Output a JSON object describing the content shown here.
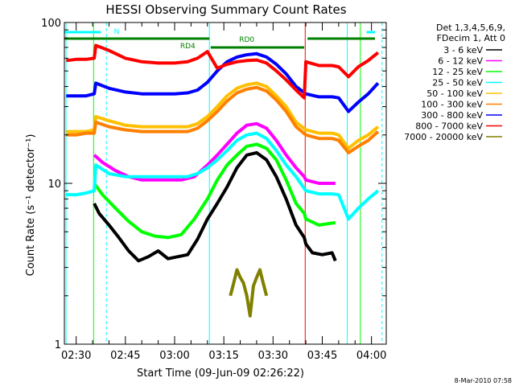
{
  "chart_data": {
    "type": "line",
    "title": "HESSI Observing Summary Count Rates",
    "xlabel": "Start Time (09-Jun-09 02:26:22)",
    "ylabel": "Count Rate (s⁻¹ detector⁻¹)",
    "y_scale": "log",
    "ylim": [
      1,
      100
    ],
    "xlim_minutes": [
      26.4,
      124.5
    ],
    "x_ticks": [
      {
        "label": "02:30",
        "value": 30
      },
      {
        "label": "02:45",
        "value": 45
      },
      {
        "label": "03:00",
        "value": 60
      },
      {
        "label": "03:15",
        "value": 75
      },
      {
        "label": "03:30",
        "value": 90
      },
      {
        "label": "03:45",
        "value": 105
      },
      {
        "label": "04:00",
        "value": 120
      }
    ],
    "y_ticks": [
      {
        "label": "1",
        "value": 1
      },
      {
        "label": "10",
        "value": 10
      },
      {
        "label": "100",
        "value": 100
      }
    ],
    "legend": {
      "header": [
        "Det 1,3,4,5,6,9,",
        "FDecim 1, Att 0"
      ],
      "placement": "right"
    },
    "series": [
      {
        "name": "3 - 6 keV",
        "color": "#000000",
        "points": [
          [
            35.5,
            7.5
          ],
          [
            37,
            6.5
          ],
          [
            40,
            5.5
          ],
          [
            43,
            4.6
          ],
          [
            46,
            3.8
          ],
          [
            49,
            3.3
          ],
          [
            52,
            3.5
          ],
          [
            55,
            3.8
          ],
          [
            58,
            3.4
          ],
          [
            61,
            3.5
          ],
          [
            64,
            3.6
          ],
          [
            67,
            4.5
          ],
          [
            70,
            6.0
          ],
          [
            73,
            7.5
          ],
          [
            76,
            9.5
          ],
          [
            79,
            12.5
          ],
          [
            82,
            15.0
          ],
          [
            85,
            15.5
          ],
          [
            88,
            14.0
          ],
          [
            91,
            11.0
          ],
          [
            94,
            8.0
          ],
          [
            97,
            5.5
          ],
          [
            99.5,
            4.6
          ],
          [
            100,
            4.2
          ],
          [
            102,
            3.7
          ],
          [
            105,
            3.6
          ],
          [
            108,
            3.7
          ],
          [
            109,
            3.3
          ]
        ]
      },
      {
        "name": "6 - 12 keV",
        "color": "#ff00ff",
        "points": [
          [
            35.5,
            15.0
          ],
          [
            38,
            13.5
          ],
          [
            42,
            12.0
          ],
          [
            46,
            11.0
          ],
          [
            50,
            10.5
          ],
          [
            54,
            10.5
          ],
          [
            58,
            10.5
          ],
          [
            62,
            10.5
          ],
          [
            66,
            11.0
          ],
          [
            70,
            13.0
          ],
          [
            73,
            15.0
          ],
          [
            76,
            17.5
          ],
          [
            79,
            20.5
          ],
          [
            82,
            23.0
          ],
          [
            85,
            23.5
          ],
          [
            88,
            22.0
          ],
          [
            91,
            18.5
          ],
          [
            94,
            15.0
          ],
          [
            97,
            12.5
          ],
          [
            99.5,
            11.0
          ],
          [
            100,
            10.5
          ],
          [
            104,
            10.0
          ],
          [
            109,
            10.0
          ]
        ]
      },
      {
        "name": "12 - 25 keV",
        "color": "#00ff00",
        "points": [
          [
            35.5,
            10.0
          ],
          [
            38,
            8.5
          ],
          [
            42,
            7.0
          ],
          [
            46,
            5.8
          ],
          [
            50,
            5.0
          ],
          [
            54,
            4.7
          ],
          [
            58,
            4.6
          ],
          [
            62,
            4.8
          ],
          [
            66,
            6.0
          ],
          [
            70,
            8.0
          ],
          [
            73,
            10.5
          ],
          [
            76,
            13.0
          ],
          [
            79,
            15.0
          ],
          [
            82,
            17.0
          ],
          [
            85,
            17.5
          ],
          [
            88,
            16.5
          ],
          [
            91,
            14.0
          ],
          [
            94,
            10.5
          ],
          [
            97,
            7.5
          ],
          [
            99.5,
            6.5
          ],
          [
            100,
            6.0
          ],
          [
            104,
            5.5
          ],
          [
            109,
            5.7
          ]
        ]
      },
      {
        "name": "25 - 50 keV",
        "color": "#00ffff",
        "points": [
          [
            27,
            8.5
          ],
          [
            30,
            8.5
          ],
          [
            33,
            8.7
          ],
          [
            35.5,
            9.0
          ],
          [
            36,
            13.0
          ],
          [
            40,
            11.5
          ],
          [
            45,
            11.0
          ],
          [
            50,
            11.0
          ],
          [
            55,
            11.0
          ],
          [
            60,
            11.0
          ],
          [
            64,
            11.0
          ],
          [
            67,
            11.5
          ],
          [
            70,
            12.5
          ],
          [
            73,
            14.0
          ],
          [
            76,
            16.0
          ],
          [
            79,
            18.5
          ],
          [
            82,
            20.0
          ],
          [
            85,
            20.5
          ],
          [
            88,
            19.0
          ],
          [
            91,
            16.0
          ],
          [
            94,
            13.0
          ],
          [
            97,
            11.0
          ],
          [
            100,
            9.0
          ],
          [
            104,
            8.6
          ],
          [
            108,
            8.6
          ],
          [
            110,
            8.5
          ],
          [
            113,
            6.0
          ],
          [
            116,
            7.0
          ],
          [
            119,
            8.0
          ],
          [
            122,
            9.0
          ]
        ]
      },
      {
        "name": "50 - 100 keV",
        "color": "#ffc000",
        "points": [
          [
            27,
            21.0
          ],
          [
            30,
            21.0
          ],
          [
            33,
            21.0
          ],
          [
            35.5,
            21.5
          ],
          [
            36,
            26.0
          ],
          [
            40,
            24.5
          ],
          [
            45,
            23.0
          ],
          [
            50,
            22.5
          ],
          [
            55,
            22.5
          ],
          [
            60,
            22.5
          ],
          [
            64,
            22.5
          ],
          [
            67,
            23.5
          ],
          [
            70,
            26.0
          ],
          [
            73,
            30.0
          ],
          [
            76,
            35.0
          ],
          [
            79,
            39.0
          ],
          [
            82,
            41.0
          ],
          [
            85,
            42.0
          ],
          [
            88,
            40.0
          ],
          [
            91,
            35.0
          ],
          [
            94,
            30.0
          ],
          [
            97,
            24.0
          ],
          [
            100,
            21.5
          ],
          [
            104,
            20.5
          ],
          [
            108,
            20.5
          ],
          [
            110,
            20.0
          ],
          [
            113,
            16.5
          ],
          [
            116,
            18.5
          ],
          [
            119,
            20.0
          ],
          [
            122,
            22.5
          ]
        ]
      },
      {
        "name": "100 - 300 keV",
        "color": "#ff8000",
        "points": [
          [
            27,
            20.0
          ],
          [
            30,
            20.0
          ],
          [
            33,
            20.5
          ],
          [
            35.5,
            20.5
          ],
          [
            36,
            24.0
          ],
          [
            40,
            22.5
          ],
          [
            45,
            21.5
          ],
          [
            50,
            21.0
          ],
          [
            55,
            21.0
          ],
          [
            60,
            21.0
          ],
          [
            64,
            21.0
          ],
          [
            67,
            22.0
          ],
          [
            70,
            24.5
          ],
          [
            73,
            28.0
          ],
          [
            76,
            32.5
          ],
          [
            79,
            36.5
          ],
          [
            82,
            38.5
          ],
          [
            85,
            39.5
          ],
          [
            88,
            37.5
          ],
          [
            91,
            33.0
          ],
          [
            94,
            28.0
          ],
          [
            97,
            22.5
          ],
          [
            100,
            20.0
          ],
          [
            104,
            19.0
          ],
          [
            108,
            19.0
          ],
          [
            110,
            18.5
          ],
          [
            113,
            15.5
          ],
          [
            116,
            17.0
          ],
          [
            119,
            18.5
          ],
          [
            122,
            21.0
          ]
        ]
      },
      {
        "name": "300 - 800 keV",
        "color": "#0000ff",
        "points": [
          [
            27,
            35.0
          ],
          [
            30,
            35.0
          ],
          [
            33,
            35.0
          ],
          [
            35.5,
            36.0
          ],
          [
            36,
            42.0
          ],
          [
            40,
            39.0
          ],
          [
            45,
            37.0
          ],
          [
            50,
            36.0
          ],
          [
            55,
            36.0
          ],
          [
            60,
            36.0
          ],
          [
            64,
            36.5
          ],
          [
            67,
            38.0
          ],
          [
            70,
            42.5
          ],
          [
            73,
            50.0
          ],
          [
            76,
            57.0
          ],
          [
            79,
            61.0
          ],
          [
            82,
            63.0
          ],
          [
            85,
            64.0
          ],
          [
            88,
            61.0
          ],
          [
            91,
            55.0
          ],
          [
            94,
            48.0
          ],
          [
            97,
            40.0
          ],
          [
            100,
            36.0
          ],
          [
            104,
            34.5
          ],
          [
            108,
            34.5
          ],
          [
            110,
            34.0
          ],
          [
            113,
            28.0
          ],
          [
            116,
            32.0
          ],
          [
            119,
            36.0
          ],
          [
            122,
            42.0
          ]
        ]
      },
      {
        "name": "800 - 7000 keV",
        "color": "#ff0000",
        "points": [
          [
            27,
            58.0
          ],
          [
            30,
            59.0
          ],
          [
            33,
            59.0
          ],
          [
            35.5,
            60.0
          ],
          [
            36,
            72.0
          ],
          [
            40,
            67.0
          ],
          [
            45,
            60.0
          ],
          [
            50,
            57.0
          ],
          [
            55,
            56.0
          ],
          [
            60,
            56.0
          ],
          [
            64,
            57.0
          ],
          [
            67,
            60.0
          ],
          [
            70,
            66.0
          ],
          [
            73,
            52.0
          ],
          [
            76,
            55.0
          ],
          [
            79,
            57.0
          ],
          [
            82,
            58.0
          ],
          [
            85,
            58.5
          ],
          [
            88,
            56.0
          ],
          [
            91,
            50.0
          ],
          [
            94,
            44.0
          ],
          [
            97,
            38.0
          ],
          [
            99.5,
            34.0
          ],
          [
            100,
            57.0
          ],
          [
            104,
            54.0
          ],
          [
            108,
            54.0
          ],
          [
            110,
            53.0
          ],
          [
            113,
            46.0
          ],
          [
            116,
            53.0
          ],
          [
            119,
            58.0
          ],
          [
            122,
            65.0
          ]
        ]
      },
      {
        "name": "7000 - 20000 keV",
        "color": "#808000",
        "points": [
          [
            77,
            2.0
          ],
          [
            78,
            2.4
          ],
          [
            79,
            2.9
          ],
          [
            80,
            2.6
          ],
          [
            81,
            2.4
          ],
          [
            82,
            2.0
          ],
          [
            83,
            1.5
          ],
          [
            84,
            2.3
          ],
          [
            85,
            2.6
          ],
          [
            86,
            2.9
          ],
          [
            87,
            2.4
          ],
          [
            88,
            2.0
          ]
        ]
      }
    ],
    "annotations": [
      {
        "text": "N",
        "color": "#00ffff"
      },
      {
        "text": "RD0",
        "color": "#008000"
      },
      {
        "text": "RD4",
        "color": "#008000"
      }
    ],
    "footer": "8-Mar-2010 07:58"
  }
}
